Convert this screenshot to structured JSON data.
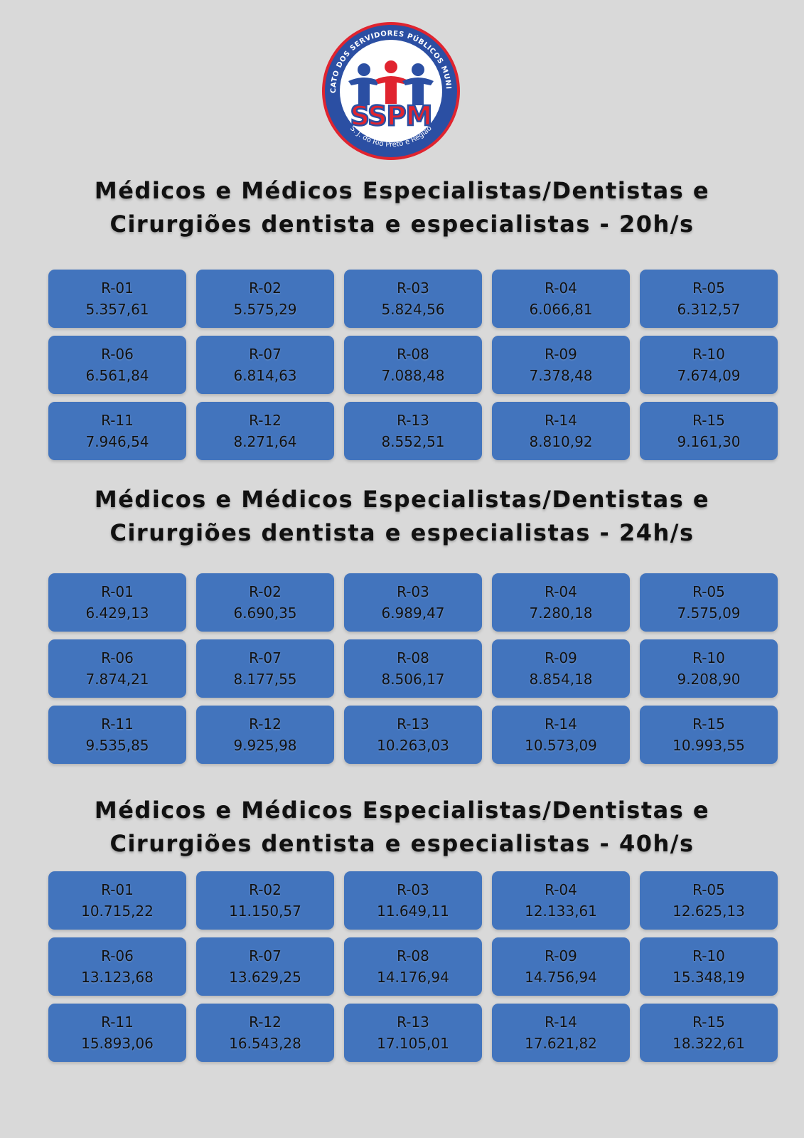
{
  "logo": {
    "ring_text": "SINDICATO DOS SERVIDORES PÚBLICOS MUNICIPAIS",
    "acronym": "SSPM",
    "bottom_text": "S. J. do Rio Preto e Região",
    "colors": {
      "blue": "#2b4fa3",
      "red": "#e0242f",
      "white": "#ffffff"
    }
  },
  "colors": {
    "background": "#d9d9d9",
    "cell": "#4274bd",
    "text": "#111111"
  },
  "sections": [
    {
      "title_line1": "Médicos e Médicos Especialistas/Dentistas e",
      "title_line2": "Cirurgiões dentista e especialistas - 20h/s",
      "cells": [
        {
          "code": "R-01",
          "value": "5.357,61"
        },
        {
          "code": "R-02",
          "value": "5.575,29"
        },
        {
          "code": "R-03",
          "value": "5.824,56"
        },
        {
          "code": "R-04",
          "value": "6.066,81"
        },
        {
          "code": "R-05",
          "value": "6.312,57"
        },
        {
          "code": "R-06",
          "value": "6.561,84"
        },
        {
          "code": "R-07",
          "value": "6.814,63"
        },
        {
          "code": "R-08",
          "value": "7.088,48"
        },
        {
          "code": "R-09",
          "value": "7.378,48"
        },
        {
          "code": "R-10",
          "value": "7.674,09"
        },
        {
          "code": "R-11",
          "value": "7.946,54"
        },
        {
          "code": "R-12",
          "value": "8.271,64"
        },
        {
          "code": "R-13",
          "value": "8.552,51"
        },
        {
          "code": "R-14",
          "value": "8.810,92"
        },
        {
          "code": "R-15",
          "value": "9.161,30"
        }
      ]
    },
    {
      "title_line1": "Médicos e Médicos Especialistas/Dentistas e",
      "title_line2": "Cirurgiões dentista e especialistas - 24h/s",
      "cells": [
        {
          "code": "R-01",
          "value": "6.429,13"
        },
        {
          "code": "R-02",
          "value": "6.690,35"
        },
        {
          "code": "R-03",
          "value": "6.989,47"
        },
        {
          "code": "R-04",
          "value": "7.280,18"
        },
        {
          "code": "R-05",
          "value": "7.575,09"
        },
        {
          "code": "R-06",
          "value": "7.874,21"
        },
        {
          "code": "R-07",
          "value": "8.177,55"
        },
        {
          "code": "R-08",
          "value": "8.506,17"
        },
        {
          "code": "R-09",
          "value": "8.854,18"
        },
        {
          "code": "R-10",
          "value": "9.208,90"
        },
        {
          "code": "R-11",
          "value": "9.535,85"
        },
        {
          "code": "R-12",
          "value": "9.925,98"
        },
        {
          "code": "R-13",
          "value": "10.263,03"
        },
        {
          "code": "R-14",
          "value": "10.573,09"
        },
        {
          "code": "R-15",
          "value": "10.993,55"
        }
      ]
    },
    {
      "title_line1": "Médicos e Médicos Especialistas/Dentistas e",
      "title_line2": "Cirurgiões dentista e especialistas - 40h/s",
      "cells": [
        {
          "code": "R-01",
          "value": "10.715,22"
        },
        {
          "code": "R-02",
          "value": "11.150,57"
        },
        {
          "code": "R-03",
          "value": "11.649,11"
        },
        {
          "code": "R-04",
          "value": "12.133,61"
        },
        {
          "code": "R-05",
          "value": "12.625,13"
        },
        {
          "code": "R-06",
          "value": "13.123,68"
        },
        {
          "code": "R-07",
          "value": "13.629,25"
        },
        {
          "code": "R-08",
          "value": "14.176,94"
        },
        {
          "code": "R-09",
          "value": "14.756,94"
        },
        {
          "code": "R-10",
          "value": "15.348,19"
        },
        {
          "code": "R-11",
          "value": "15.893,06"
        },
        {
          "code": "R-12",
          "value": "16.543,28"
        },
        {
          "code": "R-13",
          "value": "17.105,01"
        },
        {
          "code": "R-14",
          "value": "17.621,82"
        },
        {
          "code": "R-15",
          "value": "18.322,61"
        }
      ]
    }
  ]
}
